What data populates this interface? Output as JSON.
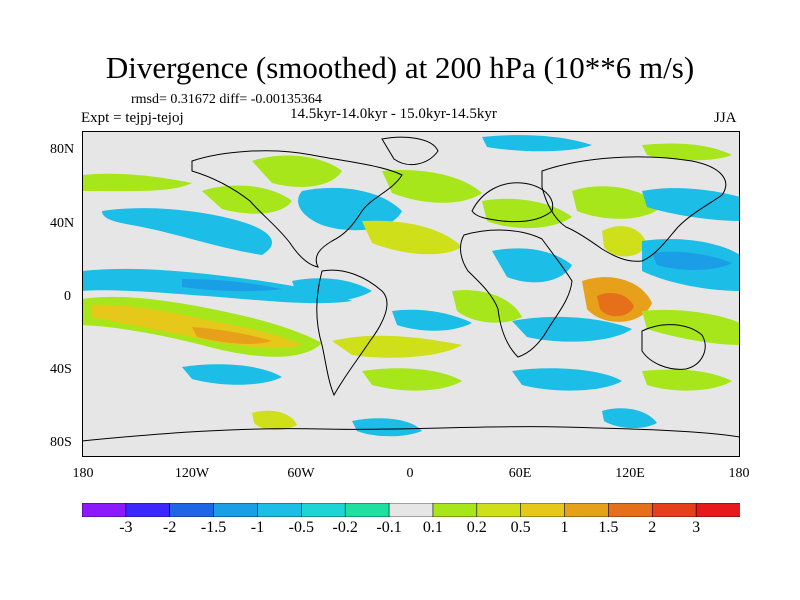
{
  "title": "Divergence (smoothed) at 200 hPa (10**6 m/s)",
  "stats_line": "rmsd= 0.31672 diff= -0.00135364",
  "expt_line": "Expt = tejpj-tejoj",
  "period_line": "14.5kyr-14.0kyr - 15.0kyr-14.5kyr",
  "season": "JJA",
  "y_ticks": [
    "80N",
    "40N",
    "0",
    "40S",
    "80S"
  ],
  "x_ticks": [
    "180",
    "120W",
    "60W",
    "0",
    "60E",
    "120E",
    "180"
  ],
  "colorbar": {
    "labels": [
      "-3",
      "-2",
      "-1.5",
      "-1",
      "-0.5",
      "-0.2",
      "-0.1",
      "0.1",
      "0.2",
      "0.5",
      "1",
      "1.5",
      "2",
      "3"
    ],
    "colors": [
      "#8c1aff",
      "#3a28ff",
      "#1f66e6",
      "#1a9ee6",
      "#1cbde6",
      "#1fd4d4",
      "#1fe0a0",
      "#e6e6e6",
      "#a6e61a",
      "#cfe01a",
      "#e6c81a",
      "#e6a01a",
      "#e6701a",
      "#e6401a",
      "#e61a1a"
    ]
  },
  "map_colors": {
    "background": "#e6e6e6",
    "neg_weak": "#1fe0a0",
    "neg_mid": "#1cbde6",
    "neg_strong": "#1a9ee6",
    "pos_weak": "#a6e61a",
    "pos_mid": "#cfe01a",
    "pos_strong": "#e6c81a",
    "pos_vstrong": "#e6a01a",
    "pos_max": "#e6701a",
    "coast": "#000000"
  }
}
